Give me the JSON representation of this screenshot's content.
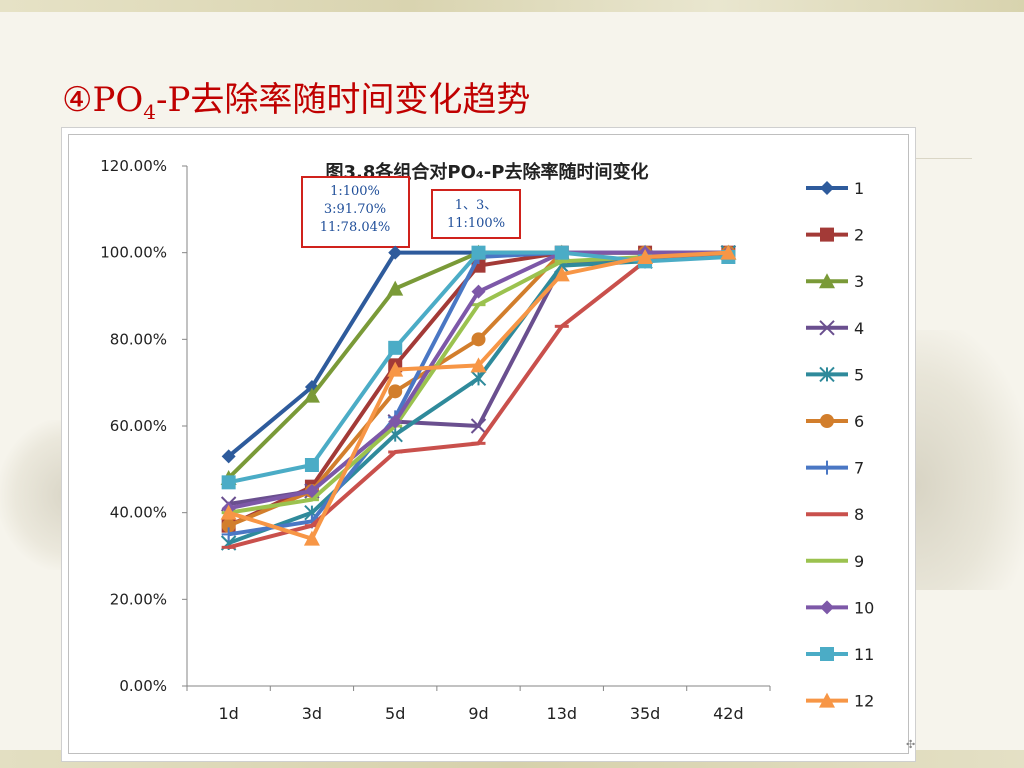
{
  "slide": {
    "title_prefix": "④PO",
    "title_sub": "4",
    "title_suffix": "-P去除率随时间变化趋势"
  },
  "annotations": [
    {
      "lines": [
        "1:100%",
        "3:91.70%",
        "11:78.04%"
      ]
    },
    {
      "lines": [
        "1、3、",
        "11:100%"
      ]
    }
  ],
  "chart_data": {
    "type": "line",
    "title": "图3.8各组合对PO₄-P去除率随时间变化",
    "xlabel": "",
    "ylabel": "",
    "categories": [
      "1d",
      "3d",
      "5d",
      "9d",
      "13d",
      "35d",
      "42d"
    ],
    "y_ticks": [
      "0.00%",
      "20.00%",
      "40.00%",
      "60.00%",
      "80.00%",
      "100.00%",
      "120.00%"
    ],
    "ylim": [
      0,
      120
    ],
    "grid": false,
    "legend": "right",
    "series": [
      {
        "name": "1",
        "color": "#2e5b9c",
        "marker": "diamond",
        "values": [
          53,
          69,
          100,
          100,
          100,
          100,
          100
        ]
      },
      {
        "name": "2",
        "color": "#a33a37",
        "marker": "square",
        "values": [
          37,
          46,
          74,
          97,
          100,
          100,
          100
        ]
      },
      {
        "name": "3",
        "color": "#7a9a38",
        "marker": "triangle",
        "values": [
          48,
          67,
          91.7,
          100,
          100,
          100,
          100
        ]
      },
      {
        "name": "4",
        "color": "#6a4f8f",
        "marker": "x",
        "values": [
          42,
          45,
          61,
          60,
          97,
          99,
          100
        ]
      },
      {
        "name": "5",
        "color": "#2f8a9b",
        "marker": "asterisk",
        "values": [
          33,
          40,
          58,
          71,
          97,
          98,
          100
        ]
      },
      {
        "name": "6",
        "color": "#d27e2c",
        "marker": "circle",
        "values": [
          37,
          45,
          68,
          80,
          100,
          100,
          100
        ]
      },
      {
        "name": "7",
        "color": "#4a77c4",
        "marker": "plus",
        "values": [
          35,
          38,
          62,
          99,
          100,
          100,
          100
        ]
      },
      {
        "name": "8",
        "color": "#c9504c",
        "marker": "dash",
        "values": [
          32,
          37,
          54,
          56,
          83,
          98,
          100
        ]
      },
      {
        "name": "9",
        "color": "#9bc24f",
        "marker": "dash",
        "values": [
          40,
          43,
          60,
          88,
          98,
          99,
          100
        ]
      },
      {
        "name": "10",
        "color": "#7d58a8",
        "marker": "diamond",
        "values": [
          41,
          45,
          61,
          91,
          100,
          100,
          100
        ]
      },
      {
        "name": "11",
        "color": "#4bacc6",
        "marker": "square",
        "values": [
          47,
          51,
          78.04,
          100,
          100,
          98,
          99
        ]
      },
      {
        "name": "12",
        "color": "#f79646",
        "marker": "triangle",
        "values": [
          40,
          34,
          73,
          74,
          95,
          99,
          100
        ]
      }
    ]
  }
}
